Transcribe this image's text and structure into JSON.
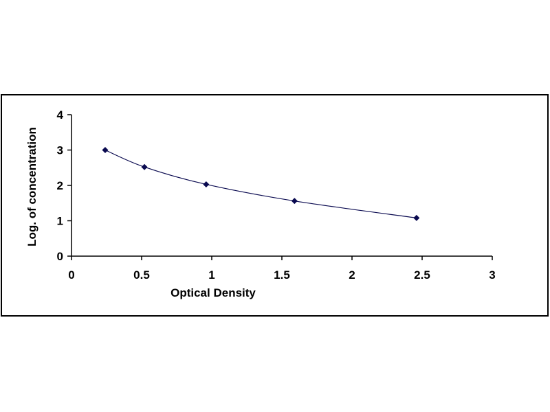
{
  "chart_data": {
    "type": "scatter",
    "title": "",
    "xlabel": "Optical Density",
    "ylabel": "Log. of concentration",
    "xlim": [
      0,
      3
    ],
    "ylim": [
      0,
      4
    ],
    "x_ticks": [
      "0",
      "0.5",
      "1",
      "1.5",
      "2",
      "2.5",
      "3"
    ],
    "y_ticks": [
      "0",
      "1",
      "2",
      "3",
      "4"
    ],
    "grid": false,
    "legend": "none",
    "trendline": "smooth curve through points",
    "series": [
      {
        "x": [
          0.24,
          0.52,
          0.96,
          1.59,
          2.46
        ],
        "y": [
          3.0,
          2.52,
          2.03,
          1.56,
          1.08
        ]
      }
    ],
    "colors": {
      "marker": "#0a0a50",
      "line": "#0a0a50",
      "axis": "#000000"
    }
  }
}
